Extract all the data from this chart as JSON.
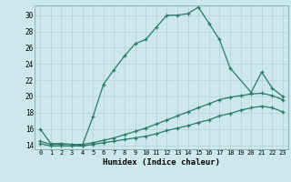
{
  "xlabel": "Humidex (Indice chaleur)",
  "bg_color": "#cce8ec",
  "grid_color": "#b8d4d8",
  "line_color": "#2a7a6a",
  "xlim": [
    -0.5,
    23.5
  ],
  "ylim": [
    13.5,
    31.2
  ],
  "yticks": [
    14,
    16,
    18,
    20,
    22,
    24,
    26,
    28,
    30
  ],
  "xticks": [
    0,
    1,
    2,
    3,
    4,
    5,
    6,
    7,
    8,
    9,
    10,
    11,
    12,
    13,
    14,
    15,
    16,
    17,
    18,
    19,
    20,
    21,
    22,
    23
  ],
  "line1_x": [
    0,
    1,
    2,
    3,
    4,
    5,
    6,
    7,
    8,
    9,
    10,
    11,
    12,
    13,
    14,
    15,
    16,
    17,
    18,
    20,
    21,
    22,
    23
  ],
  "line1_y": [
    16.0,
    14.2,
    14.2,
    14.1,
    14.0,
    17.5,
    21.5,
    23.3,
    25.0,
    26.5,
    27.0,
    28.5,
    30.0,
    30.0,
    30.2,
    31.0,
    29.0,
    27.0,
    23.5,
    20.5,
    23.0,
    21.0,
    20.0
  ],
  "line2_x": [
    0,
    1,
    2,
    3,
    4,
    5,
    6,
    7,
    8,
    9,
    10,
    11,
    12,
    13,
    14,
    15,
    16,
    17,
    18,
    19,
    20,
    21,
    22,
    23
  ],
  "line2_y": [
    14.5,
    14.1,
    14.1,
    14.1,
    14.1,
    14.3,
    14.6,
    14.9,
    15.3,
    15.7,
    16.1,
    16.6,
    17.1,
    17.6,
    18.1,
    18.6,
    19.1,
    19.6,
    19.9,
    20.1,
    20.3,
    20.4,
    20.1,
    19.6
  ],
  "line3_x": [
    0,
    1,
    2,
    3,
    4,
    5,
    6,
    7,
    8,
    9,
    10,
    11,
    12,
    13,
    14,
    15,
    16,
    17,
    18,
    19,
    20,
    21,
    22,
    23
  ],
  "line3_y": [
    14.2,
    13.9,
    13.9,
    13.9,
    13.9,
    14.1,
    14.3,
    14.5,
    14.7,
    14.9,
    15.1,
    15.4,
    15.8,
    16.1,
    16.4,
    16.8,
    17.1,
    17.6,
    17.9,
    18.3,
    18.6,
    18.8,
    18.6,
    18.1
  ]
}
